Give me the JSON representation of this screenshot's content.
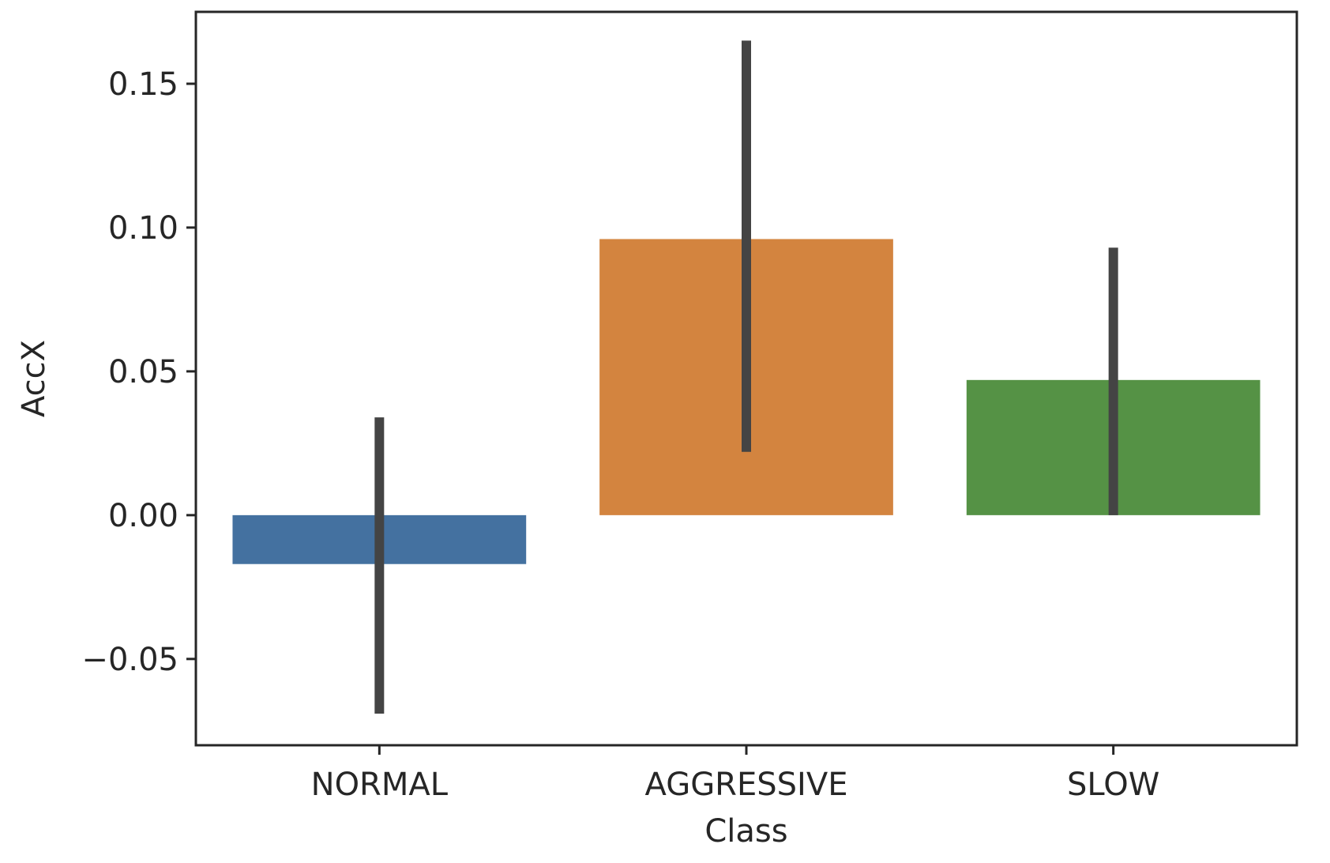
{
  "chart_data": {
    "type": "bar",
    "title": "",
    "xlabel": "Class",
    "ylabel": "AccX",
    "categories": [
      "NORMAL",
      "AGGRESSIVE",
      "SLOW"
    ],
    "values": [
      -0.017,
      0.096,
      0.047
    ],
    "error_low": [
      -0.069,
      0.022,
      0.0
    ],
    "error_high": [
      0.034,
      0.165,
      0.093
    ],
    "ylim": [
      -0.08,
      0.175
    ],
    "yticks": [
      -0.05,
      0.0,
      0.05,
      0.1,
      0.15
    ],
    "ytick_labels": [
      "−0.05",
      "0.00",
      "0.05",
      "0.10",
      "0.15"
    ],
    "grid": false,
    "legend": "none",
    "colors": [
      "#4471a0",
      "#d3843f",
      "#559245"
    ],
    "errorbar_color": "#444444"
  }
}
